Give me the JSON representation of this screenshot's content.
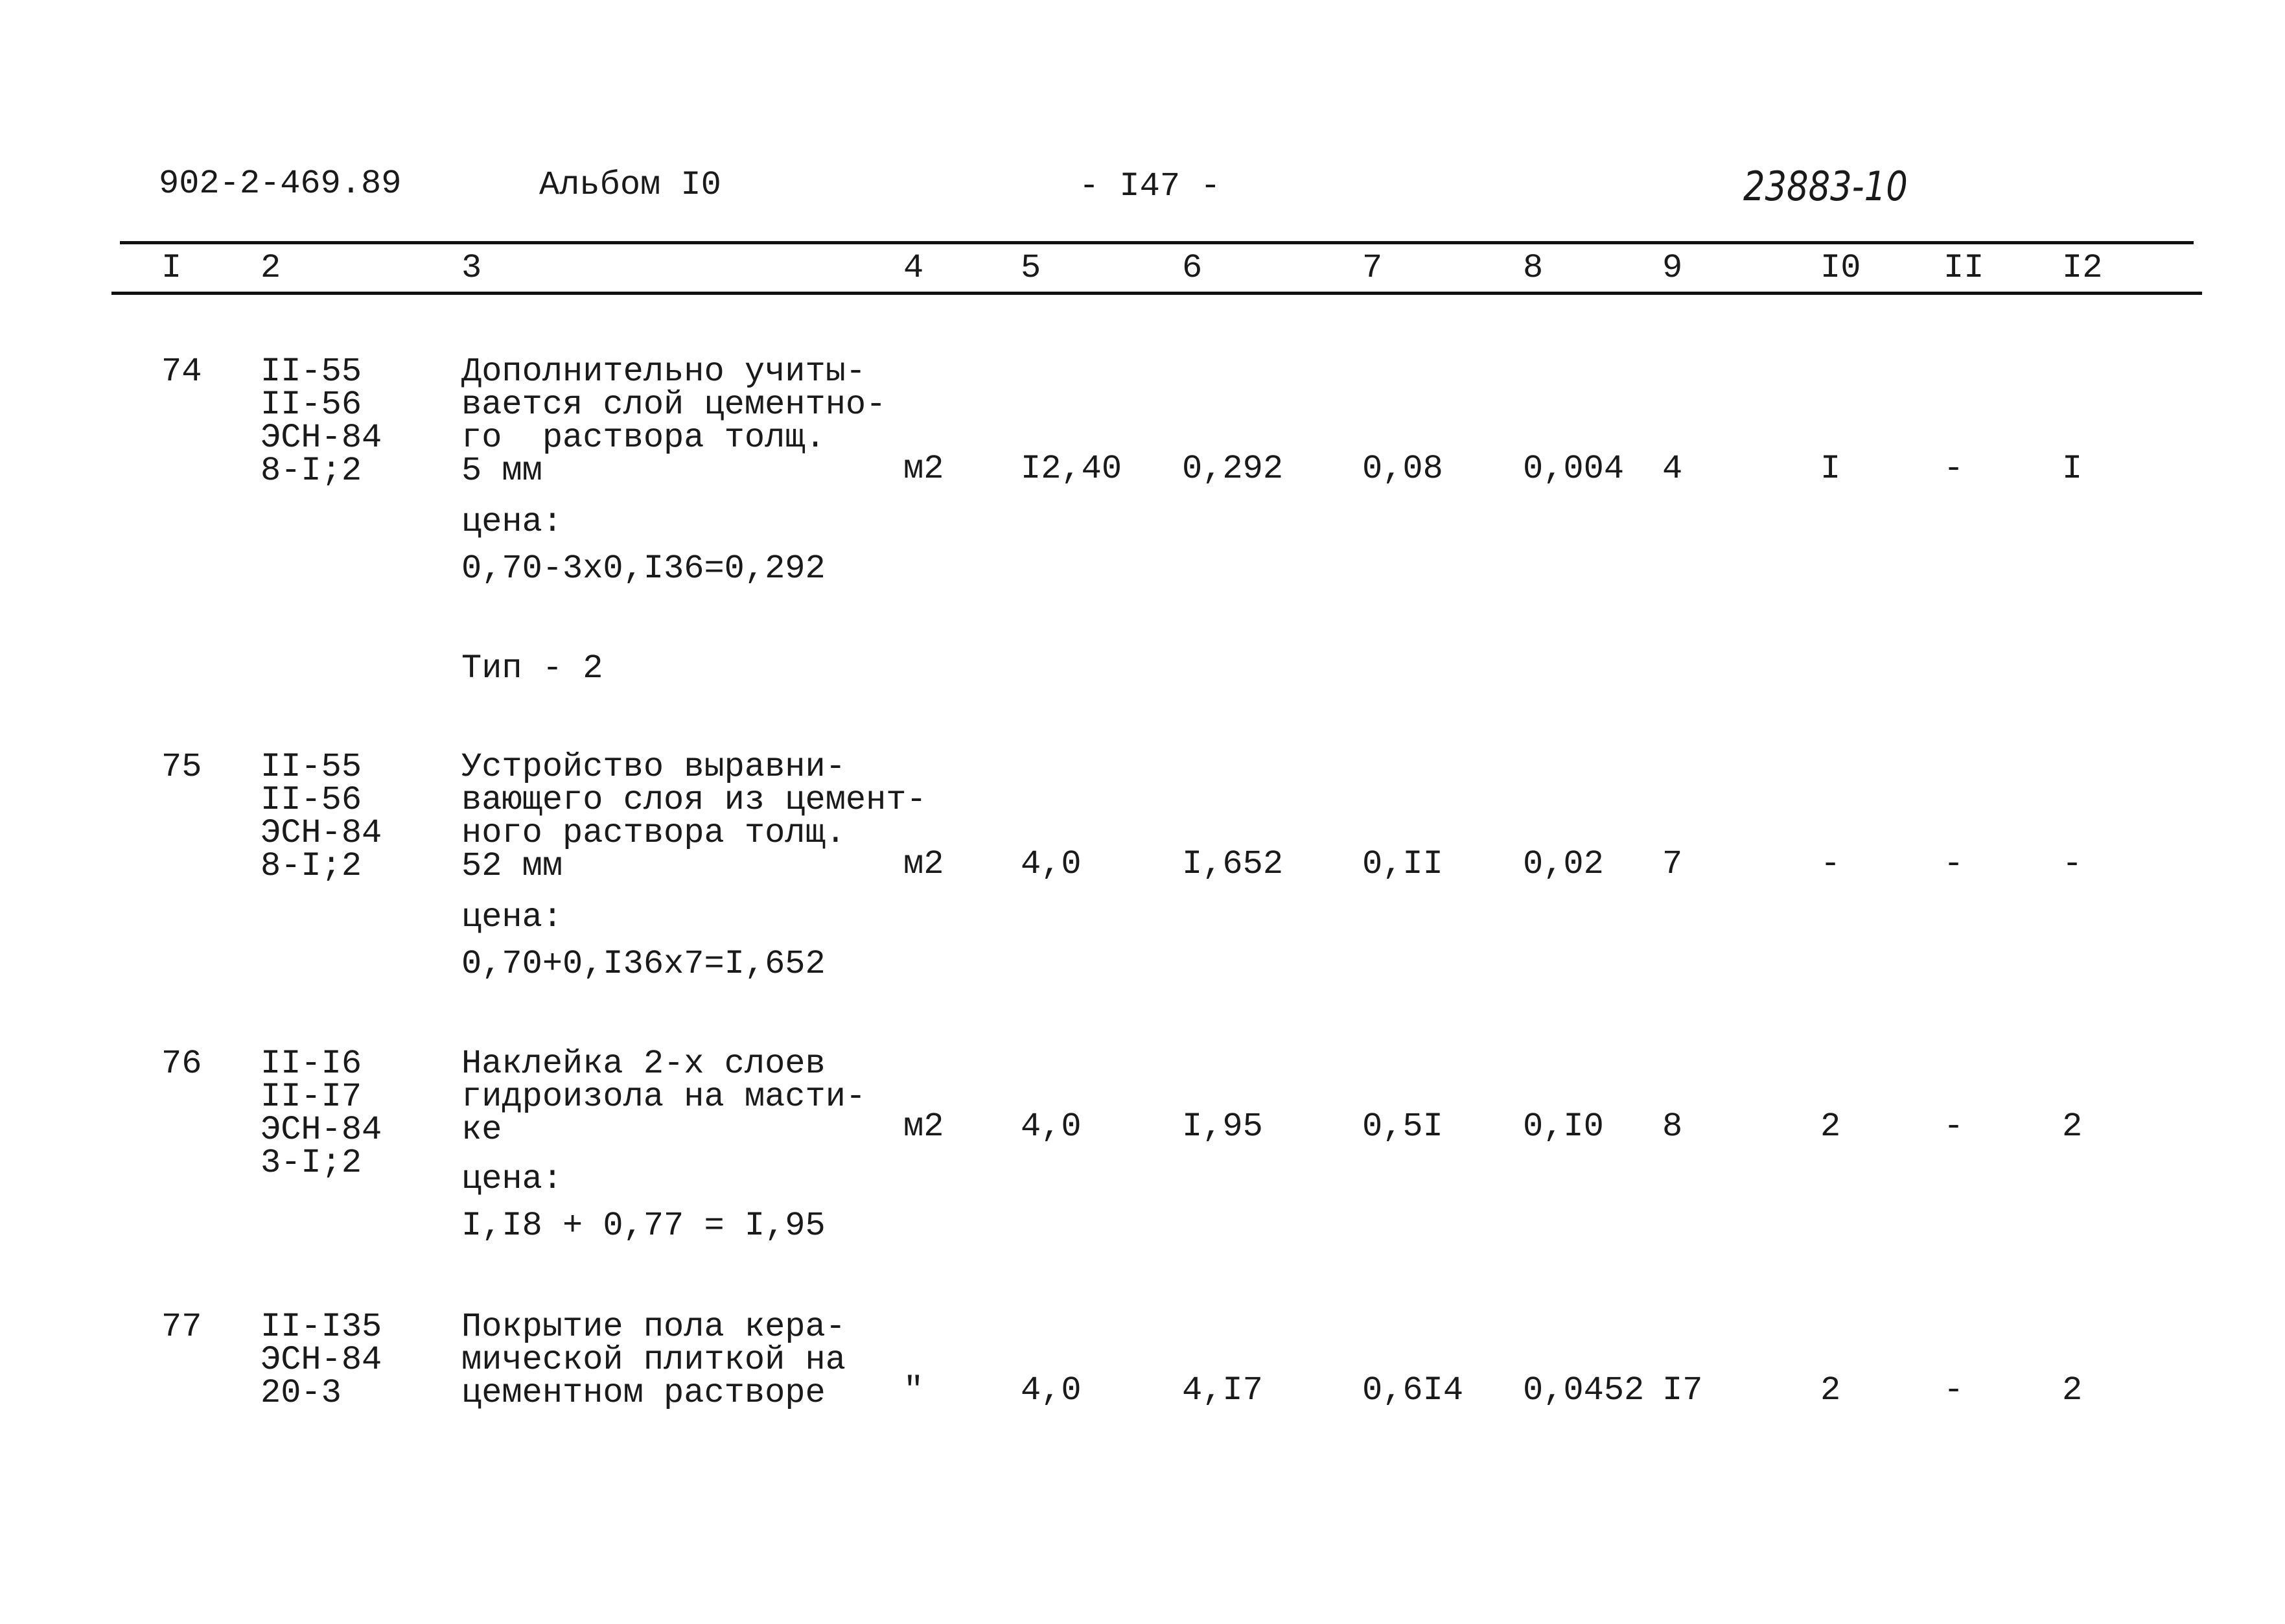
{
  "header": {
    "doc_code": "902-2-469.89",
    "album": "Альбом I0",
    "page": "- I47 -",
    "handwritten_number": "23883-10"
  },
  "columns": [
    "I",
    "2",
    "3",
    "4",
    "5",
    "6",
    "7",
    "8",
    "9",
    "I0",
    "II",
    "I2"
  ],
  "rows": [
    {
      "num": "74",
      "codes": [
        "II-55",
        "II-56",
        "ЭСН-84",
        "8-I;2"
      ],
      "desc": [
        "Дополнительно учиты-",
        "вается слой цементно-",
        "го  раствора толщ.",
        "5 мм"
      ],
      "price_label": "цена:",
      "price_formula": "0,70-3x0,I36=0,292",
      "unit": "м2",
      "c5": "I2,40",
      "c6": "0,292",
      "c7": "0,08",
      "c8": "0,004",
      "c9": "4",
      "c10": "I",
      "c11": "-",
      "c12": "I"
    },
    {
      "section_label": "Тип - 2"
    },
    {
      "num": "75",
      "codes": [
        "II-55",
        "II-56",
        "ЭСН-84",
        "8-I;2"
      ],
      "desc": [
        "Устройство выравни-",
        "вающего слоя из цемент-",
        "ного раствора толщ.",
        "52 мм"
      ],
      "price_label": "цена:",
      "price_formula": "0,70+0,I36x7=I,652",
      "unit": "м2",
      "c5": "4,0",
      "c6": "I,652",
      "c7": "0,II",
      "c8": "0,02",
      "c9": "7",
      "c10": "-",
      "c11": "-",
      "c12": "-"
    },
    {
      "num": "76",
      "codes": [
        "II-I6",
        "II-I7",
        "ЭСН-84",
        "3-I;2"
      ],
      "desc": [
        "Наклейка 2-х слоев",
        "гидроизола на масти-",
        "ке"
      ],
      "price_label": "цена:",
      "price_formula": "I,I8 + 0,77 = I,95",
      "unit": "м2",
      "c5": "4,0",
      "c6": "I,95",
      "c7": "0,5I",
      "c8": "0,I0",
      "c9": "8",
      "c10": "2",
      "c11": "-",
      "c12": "2"
    },
    {
      "num": "77",
      "codes": [
        "II-I35",
        "ЭСН-84",
        "20-3"
      ],
      "desc": [
        "Покрытие пола кера-",
        "мической плиткой на",
        "цементном растворе"
      ],
      "unit": "\"",
      "c5": "4,0",
      "c6": "4,I7",
      "c7": "0,6I4",
      "c8": "0,0452",
      "c9": "I7",
      "c10": "2",
      "c11": "-",
      "c12": "2"
    }
  ]
}
